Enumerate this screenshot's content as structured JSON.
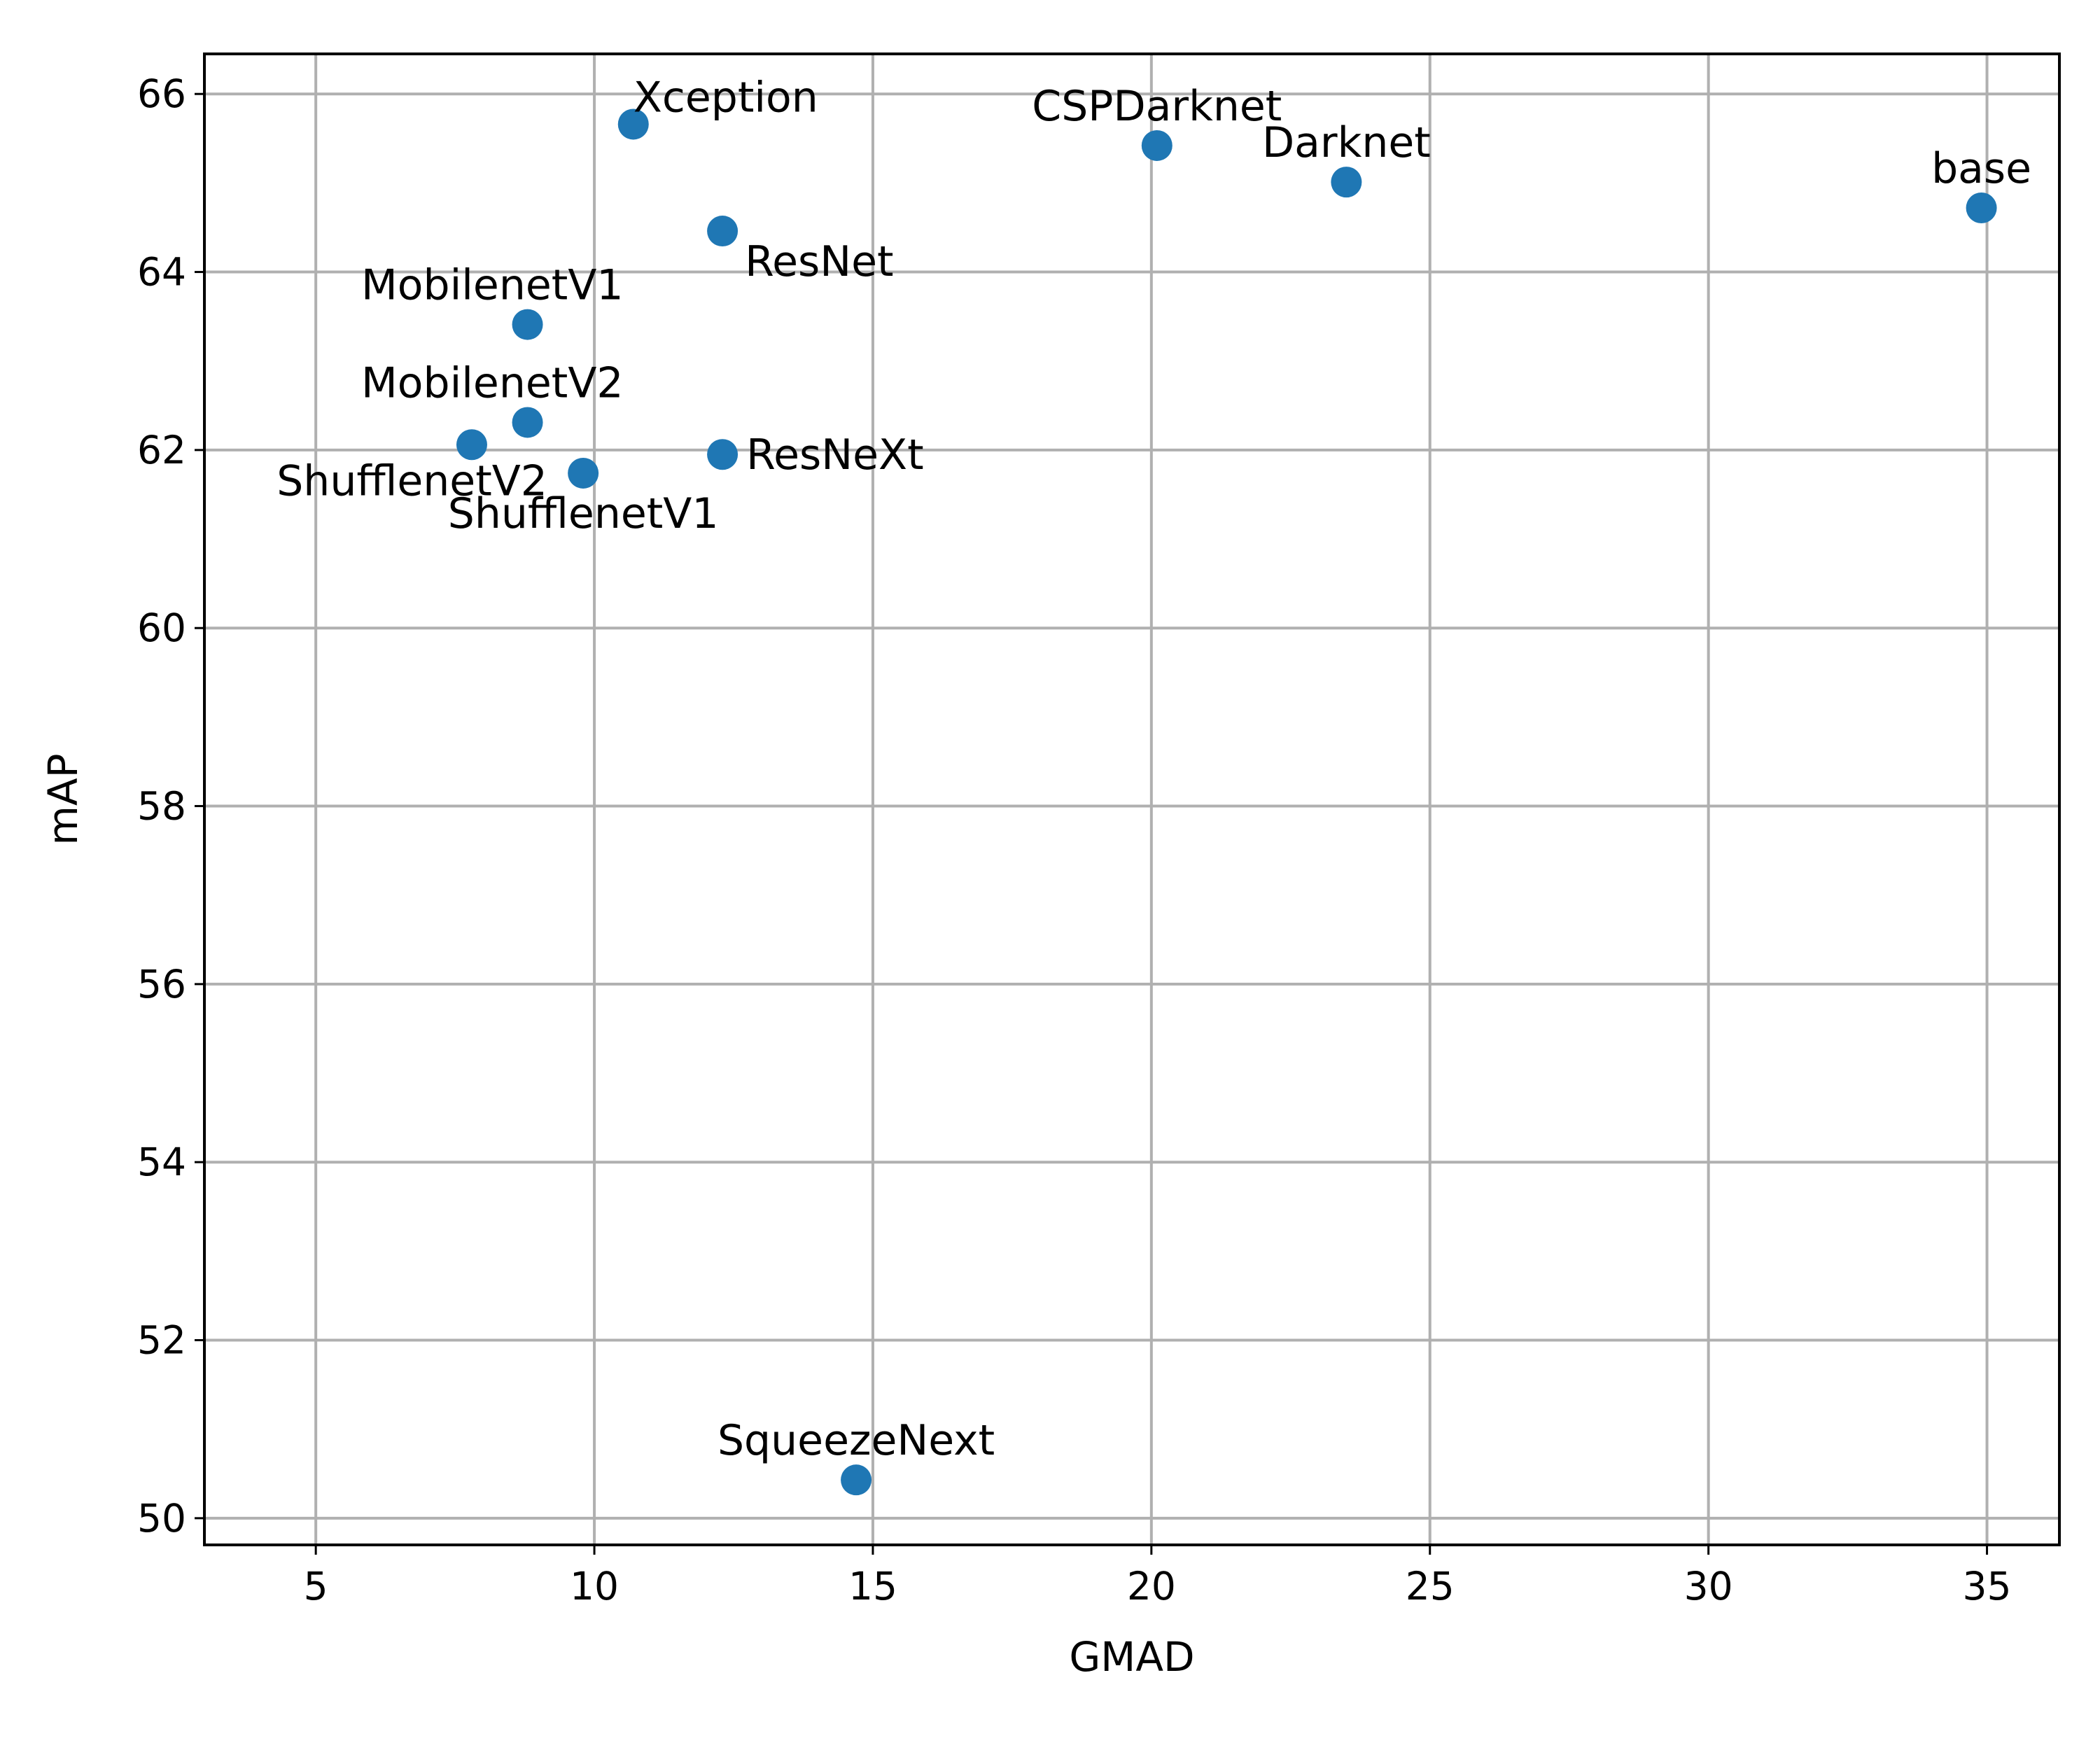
{
  "chart_data": {
    "type": "scatter",
    "title": "",
    "xlabel": "GMAD",
    "ylabel": "mAP",
    "xlim": [
      3,
      36.3
    ],
    "ylim": [
      49.7,
      66.45
    ],
    "xticks": [
      5,
      10,
      15,
      20,
      25,
      30,
      35
    ],
    "yticks": [
      50,
      52,
      54,
      56,
      58,
      60,
      62,
      64,
      66
    ],
    "xtick_labels": [
      "5",
      "10",
      "15",
      "20",
      "25",
      "30",
      "35"
    ],
    "ytick_labels": [
      "50",
      "52",
      "54",
      "56",
      "58",
      "60",
      "62",
      "64",
      "66"
    ],
    "grid": true,
    "marker_color": "#1f77b4",
    "points": [
      {
        "label": "Xception",
        "x": 10.7,
        "y": 65.66,
        "label_pos": "above-right"
      },
      {
        "label": "CSPDarknet",
        "x": 20.1,
        "y": 65.42,
        "label_pos": "above"
      },
      {
        "label": "Darknet",
        "x": 23.5,
        "y": 65.01,
        "label_pos": "above"
      },
      {
        "label": "base",
        "x": 34.9,
        "y": 64.72,
        "label_pos": "above"
      },
      {
        "label": "ResNet",
        "x": 12.3,
        "y": 64.46,
        "label_pos": "below-right"
      },
      {
        "label": "MobilenetV1",
        "x": 8.8,
        "y": 63.41,
        "label_pos": "above-left"
      },
      {
        "label": "MobilenetV2",
        "x": 8.8,
        "y": 62.31,
        "label_pos": "above-left"
      },
      {
        "label": "ShufflenetV2",
        "x": 7.8,
        "y": 62.06,
        "label_pos": "below-left"
      },
      {
        "label": "ResNeXt",
        "x": 12.3,
        "y": 61.95,
        "label_pos": "right"
      },
      {
        "label": "ShufflenetV1",
        "x": 9.8,
        "y": 61.74,
        "label_pos": "below"
      },
      {
        "label": "SqueezeNext",
        "x": 14.7,
        "y": 50.43,
        "label_pos": "above"
      }
    ]
  }
}
